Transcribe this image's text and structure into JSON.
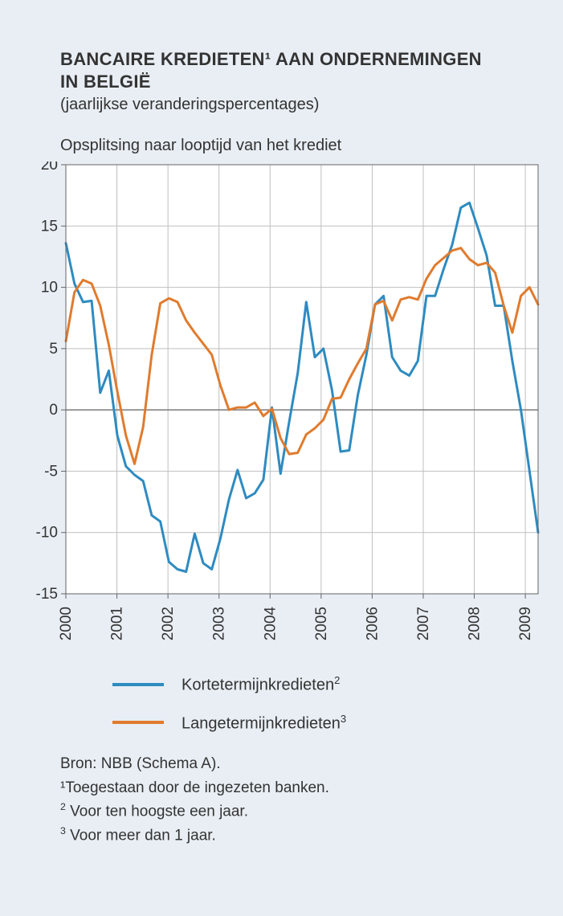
{
  "title_line1": "BANCAIRE KREDIETEN¹ AAN ONDERNEMINGEN",
  "title_line2": "IN BELGIË",
  "subtitle": "(jaarlijkse veranderingspercentages)",
  "subchart_title": "Opsplitsing naar looptijd van het krediet",
  "chart": {
    "type": "line",
    "background_color": "#ffffff",
    "page_background": "#e8eef4",
    "grid_color": "#bfbfbf",
    "axis_color": "#666666",
    "tick_font_size": 19,
    "tick_color": "#333333",
    "ylim": [
      -15,
      20
    ],
    "ytick_step": 5,
    "yticks": [
      -15,
      -10,
      -5,
      0,
      5,
      10,
      15,
      20
    ],
    "x_start_year": 2000,
    "x_end_year": 2009.25,
    "xticks": [
      2000,
      2001,
      2002,
      2003,
      2004,
      2005,
      2006,
      2007,
      2008,
      2009
    ],
    "line_width": 3,
    "zero_line_color": "#7a7a7a",
    "series": [
      {
        "name": "kortetermijn",
        "label": "Kortetermijnkredieten",
        "sup": "2",
        "color": "#2e8bc0",
        "values": [
          13.6,
          10.3,
          8.8,
          8.9,
          1.4,
          3.2,
          -2.1,
          -4.6,
          -5.3,
          -5.8,
          -8.6,
          -9.1,
          -12.4,
          -13.0,
          -13.2,
          -10.1,
          -12.5,
          -13.0,
          -10.5,
          -7.3,
          -4.9,
          -7.2,
          -6.8,
          -5.7,
          0.2,
          -5.2,
          -1.0,
          3.0,
          8.8,
          4.3,
          5.0,
          1.6,
          -3.4,
          -3.3,
          1.2,
          4.5,
          8.6,
          9.3,
          4.3,
          3.2,
          2.8,
          4.0,
          9.3,
          9.3,
          11.5,
          13.5,
          16.5,
          16.9,
          14.8,
          12.6,
          8.5,
          8.5,
          4.0,
          0.0,
          -5.0,
          -10.0
        ]
      },
      {
        "name": "langetermijn",
        "label": "Langetermijnkredieten",
        "sup": "3",
        "color": "#e07b2e",
        "values": [
          5.6,
          9.6,
          10.6,
          10.3,
          8.5,
          5.3,
          1.5,
          -2.1,
          -4.4,
          -1.4,
          4.5,
          8.7,
          9.1,
          8.8,
          7.3,
          6.3,
          5.4,
          4.5,
          2.0,
          0.0,
          0.2,
          0.2,
          0.6,
          -0.5,
          0.1,
          -2.3,
          -3.6,
          -3.5,
          -2.0,
          -1.5,
          -0.8,
          0.9,
          1.0,
          2.5,
          3.8,
          5.0,
          8.6,
          8.9,
          7.3,
          9.0,
          9.2,
          9.0,
          10.7,
          11.8,
          12.4,
          13.0,
          13.2,
          12.3,
          11.8,
          12.0,
          11.2,
          8.5,
          6.3,
          9.3,
          10.0,
          8.6
        ]
      }
    ]
  },
  "legend": {
    "item1_label": "Kortetermijnkredieten",
    "item1_sup": "2",
    "item2_label": "Langetermijnkredieten",
    "item2_sup": "3"
  },
  "footnotes": {
    "source_text": "Bron: NBB (Schema A).",
    "note1": "¹Toegestaan door de ingezeten banken.",
    "note2_sup": "2",
    "note2_text": " Voor ten hoogste een jaar.",
    "note3_sup": "3",
    "note3_text": " Voor meer dan 1 jaar."
  }
}
